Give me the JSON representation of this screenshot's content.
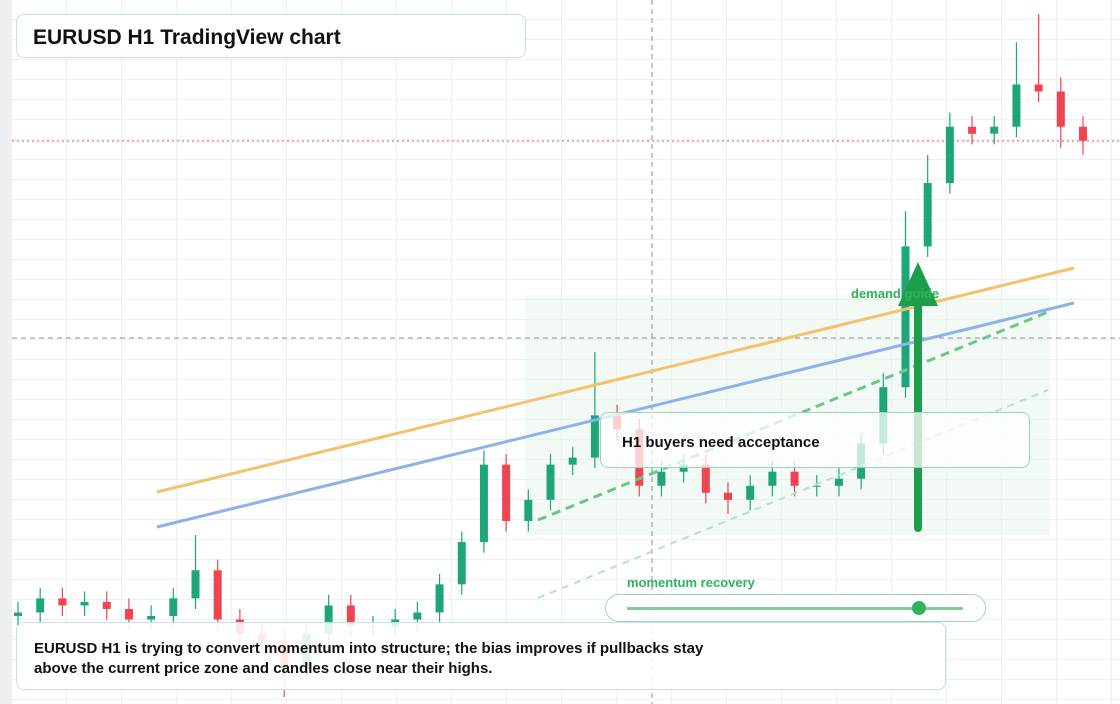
{
  "chart_data": {
    "type": "candlestick",
    "title": "EURUSD H1 TradingView chart",
    "ylim": [
      0,
      100
    ],
    "up_color": "#1ea67b",
    "down_color": "#ef4452",
    "open": [
      12.5,
      13,
      15,
      14,
      14.5,
      13.5,
      12,
      12.5,
      15,
      19,
      12,
      10,
      9,
      5,
      10,
      14,
      11,
      11,
      12,
      13,
      17,
      23,
      34,
      26,
      29,
      34,
      35,
      41,
      39,
      31,
      33,
      34,
      30,
      29,
      31,
      33,
      31,
      31,
      32,
      37,
      45,
      65,
      74,
      82,
      81,
      82,
      88,
      87,
      82
    ],
    "high": [
      14.5,
      16.5,
      16.5,
      16,
      16,
      15,
      14,
      16.5,
      24,
      20.5,
      13.5,
      11.5,
      10.5,
      11.5,
      15.5,
      15.5,
      12.5,
      13.5,
      14.5,
      18.5,
      24.5,
      36,
      35.5,
      30.5,
      35.5,
      36.5,
      50,
      42.5,
      40.5,
      34.5,
      35.5,
      35.5,
      31.5,
      32.5,
      34.5,
      34.5,
      32.5,
      33.5,
      38.5,
      47,
      70,
      78,
      84,
      83.5,
      83.5,
      94,
      98,
      89,
      83.5
    ],
    "low": [
      11,
      11.5,
      12.5,
      12.5,
      12,
      10.5,
      10.5,
      11,
      13.5,
      10.5,
      8.5,
      7.5,
      1,
      3.5,
      8.5,
      9.5,
      9.5,
      9.5,
      10.5,
      11.5,
      15.5,
      21.5,
      24.5,
      24.5,
      27.5,
      32.5,
      33.5,
      37.5,
      29.5,
      29.5,
      31.5,
      28.5,
      27,
      27.5,
      29.5,
      29.5,
      29.5,
      29.5,
      30.5,
      35.5,
      43.5,
      63.5,
      72.5,
      79.5,
      79.5,
      80.5,
      85.5,
      79,
      78
    ],
    "close": [
      13,
      15,
      14,
      14.5,
      13.5,
      12,
      12.5,
      15,
      19,
      12,
      10,
      9,
      5,
      10,
      14,
      11,
      11,
      12,
      13,
      17,
      23,
      34,
      26,
      29,
      34,
      35,
      41,
      39,
      31,
      33,
      34,
      30,
      29,
      31,
      33,
      31,
      31,
      32,
      37,
      45,
      65,
      74,
      82,
      81,
      82,
      88,
      87,
      82,
      80
    ],
    "annotations": {
      "zone_label": "demand guide",
      "callout": "H1 buyers need acceptance",
      "slider_label": "momentum recovery",
      "note": "EURUSD H1 is trying to convert momentum into structure; the bias improves if pullbacks stay above the current price zone and candles close near their highs."
    }
  }
}
